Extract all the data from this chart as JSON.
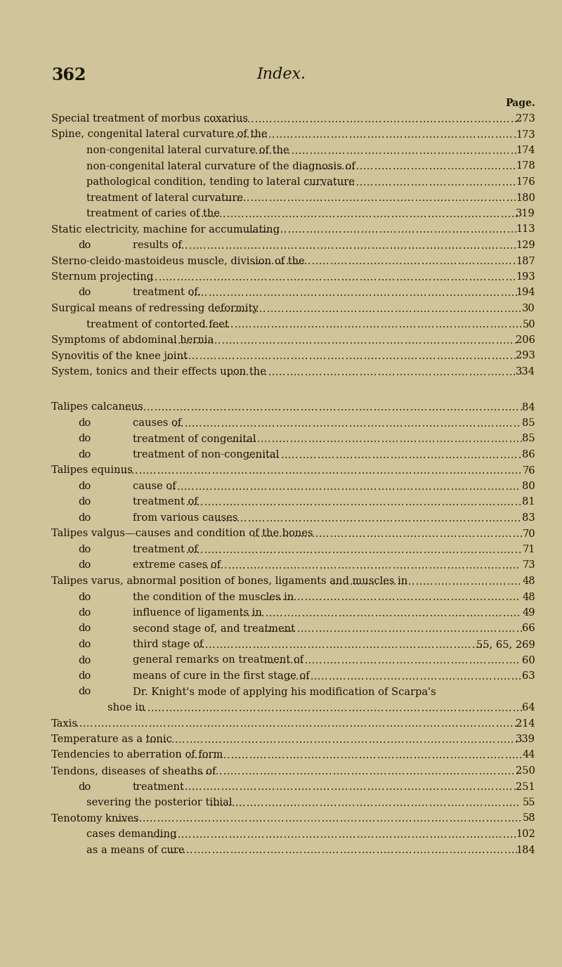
{
  "background_color": "#cfc49a",
  "page_number": "362",
  "header_title": "Index.",
  "page_label": "Page.",
  "text_color": "#1a1508",
  "lines": [
    {
      "indent": 0,
      "col1": "Special treatment of morbus coxarius",
      "col2": "273",
      "dots": true,
      "spacer": false,
      "leadin": false
    },
    {
      "indent": 0,
      "col1": "Spine, congenital lateral curvature of the",
      "col2": "173",
      "dots": true,
      "spacer": false,
      "leadin": false
    },
    {
      "indent": 1,
      "col1": "non-congenital lateral curvature of the",
      "col2": "174",
      "dots": true,
      "spacer": false,
      "leadin": false
    },
    {
      "indent": 1,
      "col1": "non-congenital lateral curvature of the diagnosis of",
      "col2": "178",
      "dots": true,
      "spacer": false,
      "leadin": false
    },
    {
      "indent": 1,
      "col1": "pathological condition, tending to lateral curvature",
      "col2": "176",
      "dots": true,
      "spacer": false,
      "leadin": false
    },
    {
      "indent": 1,
      "col1": "treatment of lateral curvature",
      "col2": "180",
      "dots": true,
      "spacer": false,
      "leadin": false
    },
    {
      "indent": 1,
      "col1": "treatment of caries of the",
      "col2": "319",
      "dots": true,
      "spacer": false,
      "leadin": false
    },
    {
      "indent": 0,
      "col1": "Static electricity, machine for accumulating",
      "col2": "113",
      "dots": true,
      "spacer": false,
      "leadin": false
    },
    {
      "indent": 2,
      "col1": "do",
      "col1b": "results of",
      "col2": "129",
      "dots": true,
      "spacer": false,
      "leadin": true
    },
    {
      "indent": 0,
      "col1": "Sterno-cleido-mastoideus muscle, division of the",
      "col2": "187",
      "dots": true,
      "spacer": false,
      "leadin": false
    },
    {
      "indent": 0,
      "col1": "Sternum projecting",
      "col2": "193",
      "dots": true,
      "spacer": false,
      "leadin": false
    },
    {
      "indent": 2,
      "col1": "do",
      "col1b": "treatment of.",
      "col2": "194",
      "dots": true,
      "spacer": false,
      "leadin": true
    },
    {
      "indent": 0,
      "col1": "Surgical means of redressing deformity",
      "col2": "30",
      "dots": true,
      "spacer": false,
      "leadin": false
    },
    {
      "indent": 1,
      "col1": "treatment of contorted feet",
      "col2": "50",
      "dots": true,
      "spacer": false,
      "leadin": false
    },
    {
      "indent": 0,
      "col1": "Symptoms of abdominal hernia",
      "col2": "206",
      "dots": true,
      "spacer": false,
      "leadin": false
    },
    {
      "indent": 0,
      "col1": "Synovitis of the knee joint",
      "col2": "293",
      "dots": true,
      "spacer": false,
      "leadin": false
    },
    {
      "indent": 0,
      "col1": "System, tonics and their effects upon the",
      "col2": "334",
      "dots": true,
      "spacer": false,
      "leadin": false
    },
    {
      "indent": 0,
      "col1": "",
      "col2": "",
      "dots": false,
      "spacer": true,
      "leadin": false
    },
    {
      "indent": 0,
      "col1": "Talipes calcaneus",
      "col2": "84",
      "dots": true,
      "spacer": false,
      "leadin": false
    },
    {
      "indent": 2,
      "col1": "do",
      "col1b": "causes of",
      "col2": "85",
      "dots": true,
      "spacer": false,
      "leadin": true
    },
    {
      "indent": 2,
      "col1": "do",
      "col1b": "treatment of congenital",
      "col2": "85",
      "dots": true,
      "spacer": false,
      "leadin": true
    },
    {
      "indent": 2,
      "col1": "do",
      "col1b": "treatment of non-congenital",
      "col2": "86",
      "dots": true,
      "spacer": false,
      "leadin": true
    },
    {
      "indent": 0,
      "col1": "Talipes equinus",
      "col2": "76",
      "dots": true,
      "spacer": false,
      "leadin": false
    },
    {
      "indent": 2,
      "col1": "do",
      "col1b": "cause of",
      "col2": "80",
      "dots": true,
      "spacer": false,
      "leadin": true
    },
    {
      "indent": 2,
      "col1": "do",
      "col1b": "treatment of",
      "col2": "81",
      "dots": true,
      "spacer": false,
      "leadin": true
    },
    {
      "indent": 2,
      "col1": "do",
      "col1b": "from various causes",
      "col2": "83",
      "dots": true,
      "spacer": false,
      "leadin": true
    },
    {
      "indent": 0,
      "col1": "Talipes valgus—causes and condition of the bones",
      "col2": "70",
      "dots": true,
      "spacer": false,
      "leadin": false
    },
    {
      "indent": 2,
      "col1": "do",
      "col1b": "treatment of",
      "col2": "71",
      "dots": true,
      "spacer": false,
      "leadin": true
    },
    {
      "indent": 2,
      "col1": "do",
      "col1b": "extreme cases of",
      "col2": "73",
      "dots": true,
      "spacer": false,
      "leadin": true
    },
    {
      "indent": 0,
      "col1": "Talipes varus, abnormal position of bones, ligaments and muscles in",
      "col2": "48",
      "dots": true,
      "spacer": false,
      "leadin": false
    },
    {
      "indent": 2,
      "col1": "do",
      "col1b": "the condition of the muscles in",
      "col2": "48",
      "dots": true,
      "spacer": false,
      "leadin": true
    },
    {
      "indent": 2,
      "col1": "do",
      "col1b": "influence of ligaments in",
      "col2": "49",
      "dots": true,
      "spacer": false,
      "leadin": true
    },
    {
      "indent": 2,
      "col1": "do",
      "col1b": "second stage of, and treatment",
      "col2": "66",
      "dots": true,
      "spacer": false,
      "leadin": true
    },
    {
      "indent": 2,
      "col1": "do",
      "col1b": "third stage of",
      "col2": "55, 65, 269",
      "dots": true,
      "spacer": false,
      "leadin": true
    },
    {
      "indent": 2,
      "col1": "do",
      "col1b": "general remarks on treatment of",
      "col2": "60",
      "dots": true,
      "spacer": false,
      "leadin": true
    },
    {
      "indent": 2,
      "col1": "do",
      "col1b": "means of cure in the first stage of",
      "col2": "63",
      "dots": true,
      "spacer": false,
      "leadin": true
    },
    {
      "indent": 2,
      "col1": "do",
      "col1b": "Dr. Knight's mode of applying his modification of Scarpa's",
      "col2": "",
      "dots": false,
      "spacer": false,
      "leadin": true
    },
    {
      "indent": 3,
      "col1": "shoe in",
      "col2": "64",
      "dots": true,
      "spacer": false,
      "leadin": false
    },
    {
      "indent": 0,
      "col1": "Taxis",
      "col2": "214",
      "dots": true,
      "spacer": false,
      "leadin": false
    },
    {
      "indent": 0,
      "col1": "Temperature as a tonic",
      "col2": "339",
      "dots": true,
      "spacer": false,
      "leadin": false
    },
    {
      "indent": 0,
      "col1": "Tendencies to aberration of form",
      "col2": "44",
      "dots": true,
      "spacer": false,
      "leadin": false
    },
    {
      "indent": 0,
      "col1": "Tendons, diseases of sheaths of",
      "col2": "250",
      "dots": true,
      "spacer": false,
      "leadin": false
    },
    {
      "indent": 2,
      "col1": "do",
      "col1b": "treatment",
      "col2": "251",
      "dots": true,
      "spacer": false,
      "leadin": true
    },
    {
      "indent": 1,
      "col1": "severing the posterior tibial",
      "col2": "55",
      "dots": true,
      "spacer": false,
      "leadin": false
    },
    {
      "indent": 0,
      "col1": "Tenotomy knives",
      "col2": "58",
      "dots": true,
      "spacer": false,
      "leadin": false
    },
    {
      "indent": 1,
      "col1": "cases demanding",
      "col2": "102",
      "dots": true,
      "spacer": false,
      "leadin": false
    },
    {
      "indent": 1,
      "col1": "as a means of cure",
      "col2": "184",
      "dots": true,
      "spacer": false,
      "leadin": false
    }
  ]
}
